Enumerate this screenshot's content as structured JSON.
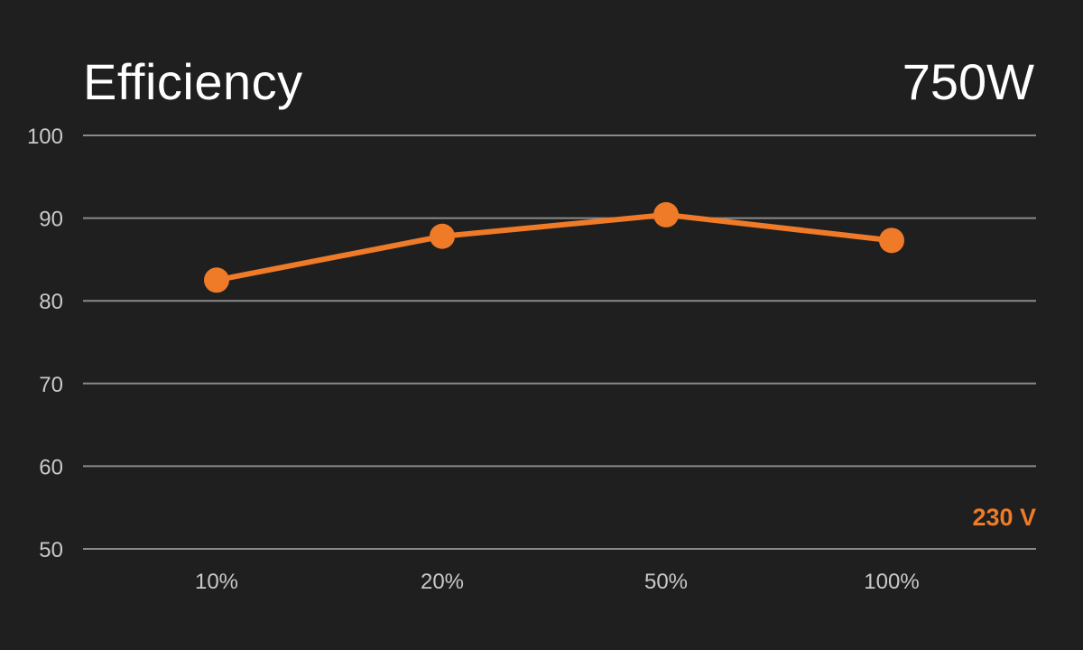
{
  "chart_data": {
    "type": "line",
    "title": "Efficiency",
    "subtitle": "750W",
    "categories": [
      "10%",
      "20%",
      "50%",
      "100%"
    ],
    "series": [
      {
        "name": "230 V",
        "values": [
          82.5,
          87.8,
          90.4,
          87.3
        ]
      }
    ],
    "yticks": [
      "100",
      "90",
      "80",
      "70",
      "60",
      "50"
    ],
    "ylim": [
      50,
      100
    ],
    "grid": true,
    "legend_position": "bottom-right",
    "colors": {
      "background": "#1f1f1f",
      "series": "#ef7a28",
      "grid": "#8a8a8a",
      "text": "#ffffff",
      "tick_text": "#c9c9c9"
    }
  }
}
